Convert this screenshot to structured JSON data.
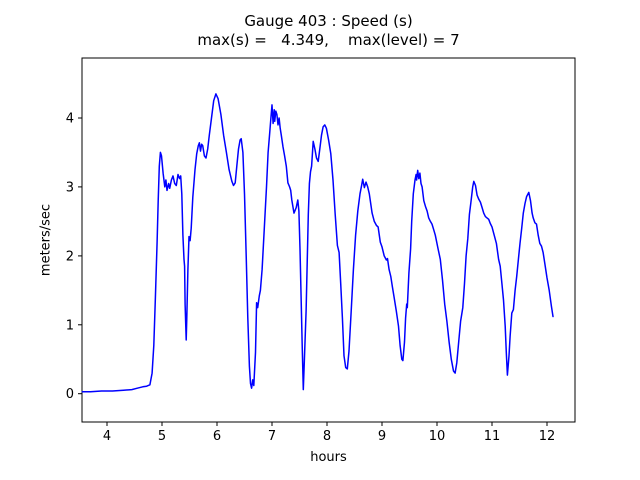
{
  "figure": {
    "kind": "matplotlib-style line plot"
  },
  "chart_data": {
    "type": "line",
    "title": "Gauge 403 : Speed (s)",
    "subtitle": "max(s) =   4.349,    max(level) = 7",
    "stats": {
      "max_s": 4.349,
      "max_level": 7
    },
    "xlabel": "hours",
    "ylabel": "meters/sec",
    "xlim": [
      3.545,
      12.51
    ],
    "ylim": [
      -0.41,
      4.87
    ],
    "xticks": [
      4,
      5,
      6,
      7,
      8,
      9,
      10,
      11,
      12
    ],
    "yticks": [
      0,
      1,
      2,
      3,
      4
    ],
    "grid": false,
    "legend_position": "none",
    "line_color": "#0000ff",
    "line_width": 1.5,
    "axes_color": "#000000",
    "background_color": "#ffffff",
    "series": [
      {
        "name": "speed",
        "points": [
          [
            3.55,
            0.03
          ],
          [
            3.7,
            0.03
          ],
          [
            3.9,
            0.04
          ],
          [
            4.1,
            0.04
          ],
          [
            4.3,
            0.05
          ],
          [
            4.45,
            0.06
          ],
          [
            4.55,
            0.08
          ],
          [
            4.65,
            0.1
          ],
          [
            4.72,
            0.11
          ],
          [
            4.78,
            0.13
          ],
          [
            4.82,
            0.3
          ],
          [
            4.85,
            0.7
          ],
          [
            4.88,
            1.4
          ],
          [
            4.91,
            2.2
          ],
          [
            4.93,
            2.8
          ],
          [
            4.95,
            3.3
          ],
          [
            4.97,
            3.5
          ],
          [
            4.99,
            3.45
          ],
          [
            5.02,
            3.2
          ],
          [
            5.05,
            3.0
          ],
          [
            5.07,
            3.1
          ],
          [
            5.09,
            2.95
          ],
          [
            5.12,
            3.05
          ],
          [
            5.14,
            2.98
          ],
          [
            5.17,
            3.1
          ],
          [
            5.2,
            3.16
          ],
          [
            5.23,
            3.05
          ],
          [
            5.26,
            3.02
          ],
          [
            5.29,
            3.18
          ],
          [
            5.32,
            3.12
          ],
          [
            5.34,
            3.16
          ],
          [
            5.36,
            2.9
          ],
          [
            5.38,
            2.3
          ],
          [
            5.4,
            1.95
          ],
          [
            5.41,
            1.85
          ],
          [
            5.42,
            1.3
          ],
          [
            5.44,
            0.78
          ],
          [
            5.45,
            1.1
          ],
          [
            5.47,
            1.8
          ],
          [
            5.49,
            2.28
          ],
          [
            5.51,
            2.22
          ],
          [
            5.53,
            2.4
          ],
          [
            5.56,
            2.85
          ],
          [
            5.6,
            3.25
          ],
          [
            5.63,
            3.48
          ],
          [
            5.66,
            3.6
          ],
          [
            5.68,
            3.64
          ],
          [
            5.7,
            3.52
          ],
          [
            5.72,
            3.62
          ],
          [
            5.74,
            3.6
          ],
          [
            5.77,
            3.45
          ],
          [
            5.8,
            3.42
          ],
          [
            5.83,
            3.55
          ],
          [
            5.86,
            3.75
          ],
          [
            5.9,
            4.0
          ],
          [
            5.94,
            4.25
          ],
          [
            5.98,
            4.349
          ],
          [
            6.02,
            4.28
          ],
          [
            6.07,
            4.05
          ],
          [
            6.12,
            3.75
          ],
          [
            6.17,
            3.5
          ],
          [
            6.22,
            3.25
          ],
          [
            6.27,
            3.08
          ],
          [
            6.3,
            3.02
          ],
          [
            6.33,
            3.06
          ],
          [
            6.36,
            3.3
          ],
          [
            6.39,
            3.55
          ],
          [
            6.42,
            3.68
          ],
          [
            6.44,
            3.7
          ],
          [
            6.47,
            3.5
          ],
          [
            6.5,
            2.9
          ],
          [
            6.53,
            2.0
          ],
          [
            6.56,
            1.1
          ],
          [
            6.59,
            0.4
          ],
          [
            6.61,
            0.15
          ],
          [
            6.63,
            0.08
          ],
          [
            6.65,
            0.2
          ],
          [
            6.67,
            0.12
          ],
          [
            6.7,
            0.6
          ],
          [
            6.72,
            1.32
          ],
          [
            6.74,
            1.25
          ],
          [
            6.77,
            1.42
          ],
          [
            6.79,
            1.5
          ],
          [
            6.82,
            1.8
          ],
          [
            6.86,
            2.4
          ],
          [
            6.9,
            3.0
          ],
          [
            6.93,
            3.5
          ],
          [
            6.96,
            3.8
          ],
          [
            6.98,
            4.0
          ],
          [
            7.0,
            4.19
          ],
          [
            7.02,
            3.92
          ],
          [
            7.04,
            4.12
          ],
          [
            7.05,
            3.95
          ],
          [
            7.07,
            4.1
          ],
          [
            7.09,
            4.05
          ],
          [
            7.11,
            3.9
          ],
          [
            7.13,
            4.0
          ],
          [
            7.15,
            3.85
          ],
          [
            7.17,
            3.75
          ],
          [
            7.2,
            3.58
          ],
          [
            7.23,
            3.45
          ],
          [
            7.26,
            3.3
          ],
          [
            7.29,
            3.06
          ],
          [
            7.32,
            3.0
          ],
          [
            7.34,
            2.95
          ],
          [
            7.36,
            2.81
          ],
          [
            7.4,
            2.62
          ],
          [
            7.44,
            2.7
          ],
          [
            7.47,
            2.81
          ],
          [
            7.49,
            2.65
          ],
          [
            7.51,
            2.1
          ],
          [
            7.53,
            1.4
          ],
          [
            7.55,
            0.7
          ],
          [
            7.57,
            0.06
          ],
          [
            7.59,
            0.5
          ],
          [
            7.62,
            1.2
          ],
          [
            7.64,
            1.9
          ],
          [
            7.66,
            2.6
          ],
          [
            7.68,
            3.05
          ],
          [
            7.7,
            3.22
          ],
          [
            7.72,
            3.3
          ],
          [
            7.75,
            3.66
          ],
          [
            7.78,
            3.55
          ],
          [
            7.81,
            3.42
          ],
          [
            7.84,
            3.37
          ],
          [
            7.87,
            3.55
          ],
          [
            7.9,
            3.75
          ],
          [
            7.93,
            3.87
          ],
          [
            7.96,
            3.9
          ],
          [
            7.99,
            3.85
          ],
          [
            8.03,
            3.68
          ],
          [
            8.07,
            3.48
          ],
          [
            8.11,
            3.1
          ],
          [
            8.15,
            2.6
          ],
          [
            8.19,
            2.15
          ],
          [
            8.22,
            2.05
          ],
          [
            8.25,
            1.6
          ],
          [
            8.28,
            1.1
          ],
          [
            8.31,
            0.55
          ],
          [
            8.34,
            0.38
          ],
          [
            8.37,
            0.36
          ],
          [
            8.4,
            0.62
          ],
          [
            8.44,
            1.2
          ],
          [
            8.48,
            1.8
          ],
          [
            8.52,
            2.3
          ],
          [
            8.56,
            2.65
          ],
          [
            8.6,
            2.9
          ],
          [
            8.63,
            3.02
          ],
          [
            8.65,
            3.11
          ],
          [
            8.68,
            2.99
          ],
          [
            8.71,
            3.07
          ],
          [
            8.74,
            3.0
          ],
          [
            8.77,
            2.9
          ],
          [
            8.82,
            2.62
          ],
          [
            8.86,
            2.5
          ],
          [
            8.9,
            2.44
          ],
          [
            8.93,
            2.42
          ],
          [
            8.97,
            2.2
          ],
          [
            9.0,
            2.13
          ],
          [
            9.04,
            2.0
          ],
          [
            9.08,
            1.94
          ],
          [
            9.1,
            1.96
          ],
          [
            9.13,
            1.8
          ],
          [
            9.16,
            1.7
          ],
          [
            9.19,
            1.55
          ],
          [
            9.22,
            1.4
          ],
          [
            9.26,
            1.2
          ],
          [
            9.3,
            0.98
          ],
          [
            9.33,
            0.7
          ],
          [
            9.36,
            0.5
          ],
          [
            9.38,
            0.48
          ],
          [
            9.41,
            0.75
          ],
          [
            9.43,
            1.1
          ],
          [
            9.45,
            1.3
          ],
          [
            9.46,
            1.25
          ],
          [
            9.49,
            1.75
          ],
          [
            9.52,
            2.1
          ],
          [
            9.54,
            2.5
          ],
          [
            9.57,
            2.9
          ],
          [
            9.6,
            3.1
          ],
          [
            9.62,
            3.18
          ],
          [
            9.63,
            3.1
          ],
          [
            9.65,
            3.24
          ],
          [
            9.67,
            3.12
          ],
          [
            9.69,
            3.2
          ],
          [
            9.71,
            3.05
          ],
          [
            9.73,
            3.0
          ],
          [
            9.76,
            2.8
          ],
          [
            9.79,
            2.72
          ],
          [
            9.82,
            2.65
          ],
          [
            9.85,
            2.55
          ],
          [
            9.88,
            2.5
          ],
          [
            9.91,
            2.46
          ],
          [
            9.94,
            2.38
          ],
          [
            9.97,
            2.3
          ],
          [
            10.02,
            2.1
          ],
          [
            10.06,
            1.95
          ],
          [
            10.1,
            1.65
          ],
          [
            10.14,
            1.3
          ],
          [
            10.18,
            1.05
          ],
          [
            10.22,
            0.75
          ],
          [
            10.26,
            0.5
          ],
          [
            10.3,
            0.33
          ],
          [
            10.33,
            0.3
          ],
          [
            10.36,
            0.45
          ],
          [
            10.4,
            0.8
          ],
          [
            10.43,
            1.05
          ],
          [
            10.45,
            1.15
          ],
          [
            10.47,
            1.25
          ],
          [
            10.5,
            1.6
          ],
          [
            10.53,
            2.0
          ],
          [
            10.56,
            2.25
          ],
          [
            10.59,
            2.6
          ],
          [
            10.62,
            2.8
          ],
          [
            10.65,
            3.0
          ],
          [
            10.67,
            3.08
          ],
          [
            10.7,
            3.02
          ],
          [
            10.73,
            2.88
          ],
          [
            10.76,
            2.82
          ],
          [
            10.79,
            2.78
          ],
          [
            10.82,
            2.7
          ],
          [
            10.85,
            2.62
          ],
          [
            10.88,
            2.57
          ],
          [
            10.91,
            2.55
          ],
          [
            10.94,
            2.53
          ],
          [
            10.97,
            2.47
          ],
          [
            11.0,
            2.42
          ],
          [
            11.04,
            2.3
          ],
          [
            11.08,
            2.18
          ],
          [
            11.12,
            1.95
          ],
          [
            11.15,
            1.85
          ],
          [
            11.18,
            1.6
          ],
          [
            11.21,
            1.36
          ],
          [
            11.24,
            0.98
          ],
          [
            11.26,
            0.6
          ],
          [
            11.28,
            0.27
          ],
          [
            11.31,
            0.55
          ],
          [
            11.33,
            0.83
          ],
          [
            11.36,
            1.17
          ],
          [
            11.39,
            1.22
          ],
          [
            11.42,
            1.5
          ],
          [
            11.45,
            1.7
          ],
          [
            11.48,
            1.95
          ],
          [
            11.51,
            2.18
          ],
          [
            11.54,
            2.4
          ],
          [
            11.57,
            2.62
          ],
          [
            11.6,
            2.76
          ],
          [
            11.63,
            2.86
          ],
          [
            11.67,
            2.92
          ],
          [
            11.7,
            2.8
          ],
          [
            11.73,
            2.62
          ],
          [
            11.75,
            2.55
          ],
          [
            11.78,
            2.48
          ],
          [
            11.81,
            2.46
          ],
          [
            11.84,
            2.3
          ],
          [
            11.87,
            2.18
          ],
          [
            11.9,
            2.14
          ],
          [
            11.93,
            2.05
          ],
          [
            11.96,
            1.89
          ],
          [
            12.0,
            1.68
          ],
          [
            12.04,
            1.5
          ],
          [
            12.08,
            1.27
          ],
          [
            12.11,
            1.12
          ]
        ]
      }
    ]
  }
}
